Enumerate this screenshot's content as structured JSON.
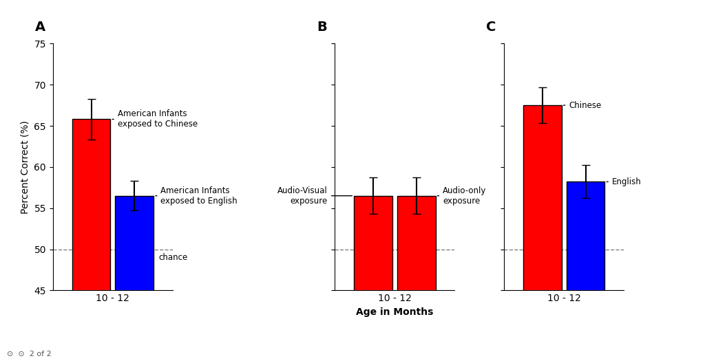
{
  "chart_data": [
    {
      "type": "bar",
      "title": "A",
      "ylabel": "Percent Correct (%)",
      "categories": [
        "10 - 12"
      ],
      "series": [
        {
          "name": "American Infants\nexposed to Chinese",
          "color": "#FF0000",
          "values": [
            65.8
          ],
          "errors": [
            2.5
          ]
        },
        {
          "name": "American Infants\nexposed to English",
          "color": "#0000FF",
          "values": [
            56.5
          ],
          "errors": [
            1.8
          ]
        }
      ],
      "ylim": [
        45,
        75
      ],
      "yticks": [
        45,
        50,
        55,
        60,
        65,
        70,
        75
      ],
      "chance_line": {
        "value": 50,
        "label": "chance"
      },
      "footnote": "⊙  ⊙  2 of 2"
    },
    {
      "type": "bar",
      "title": "B",
      "xlabel": "Age in Months",
      "categories": [
        "10 - 12"
      ],
      "series": [
        {
          "name": "Audio-Visual\nexposure",
          "color": "#FF0000",
          "values": [
            56.5
          ],
          "errors": [
            2.2
          ]
        },
        {
          "name": "Audio-only\nexposure",
          "color": "#FF0000",
          "values": [
            56.5
          ],
          "errors": [
            2.2
          ]
        }
      ],
      "ylim": [
        45,
        75
      ],
      "yticks": [
        45,
        50,
        55,
        60,
        65,
        70,
        75
      ],
      "chance_line": {
        "value": 50
      },
      "tick_labels": "x"
    },
    {
      "type": "bar",
      "title": "C",
      "categories": [
        "10 - 12"
      ],
      "series": [
        {
          "name": "Chinese",
          "color": "#FF0000",
          "values": [
            67.5
          ],
          "errors": [
            2.2
          ]
        },
        {
          "name": "English",
          "color": "#0000FF",
          "values": [
            58.2
          ],
          "errors": [
            2.0
          ]
        }
      ],
      "ylim": [
        45,
        75
      ],
      "yticks": [
        45,
        50,
        55,
        60,
        65,
        70,
        75
      ],
      "chance_line": {
        "value": 50
      },
      "tick_labels": "x"
    }
  ]
}
